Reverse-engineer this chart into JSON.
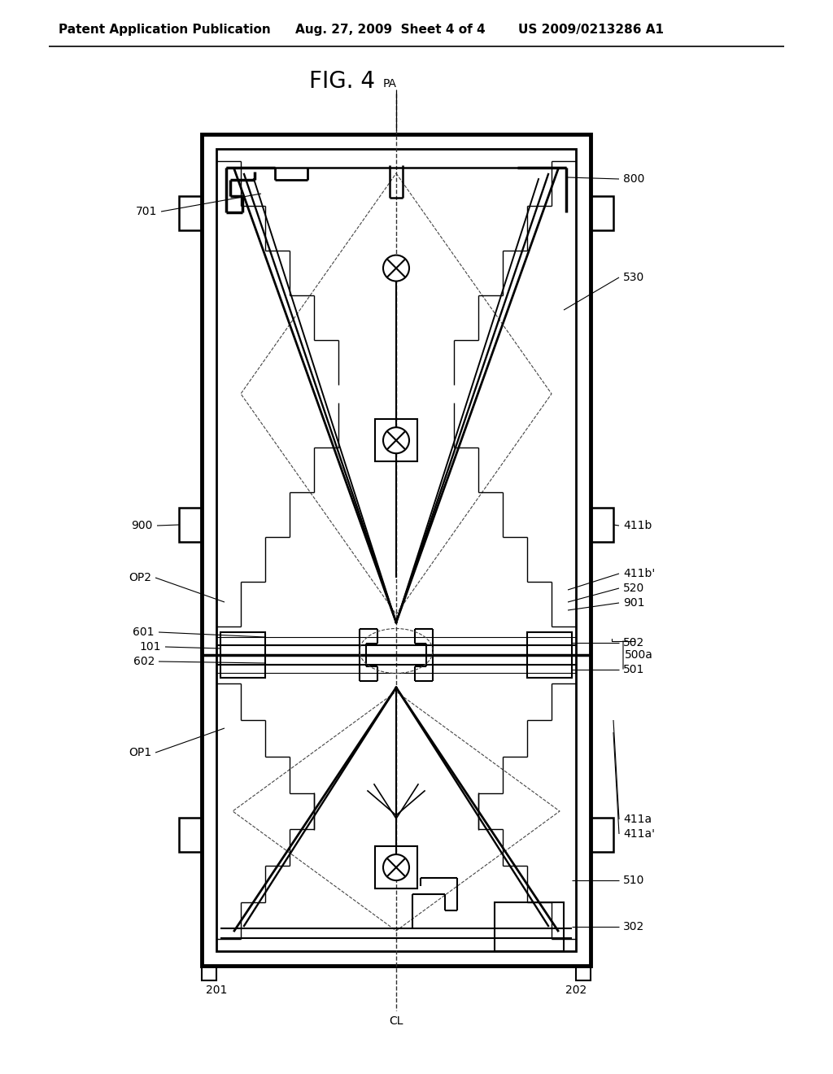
{
  "title": "FIG. 4",
  "header_left": "Patent Application Publication",
  "header_mid": "Aug. 27, 2009  Sheet 4 of 4",
  "header_right": "US 2009/0213286 A1",
  "bg_color": "#ffffff",
  "line_color": "#000000"
}
